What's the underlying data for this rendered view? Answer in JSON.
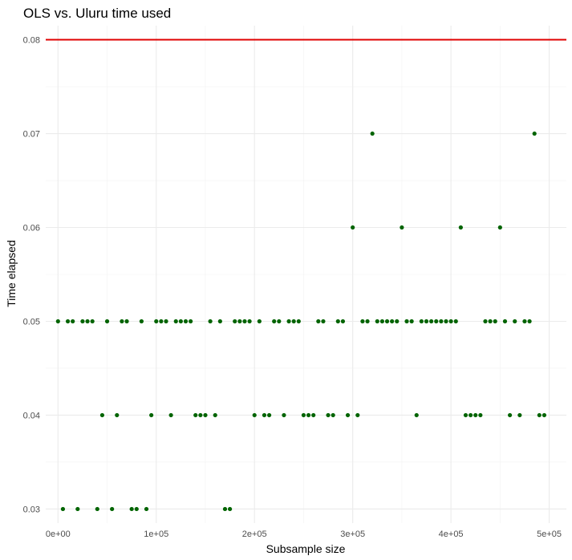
{
  "chart_data": {
    "type": "scatter",
    "title": "OLS vs. Uluru time used",
    "xlabel": "Subsample size",
    "ylabel": "Time elapsed",
    "xlim": [
      -12500,
      517500
    ],
    "ylim": [
      0.0285,
      0.0815
    ],
    "x_ticks": [
      {
        "value": 0,
        "label": "0e+00"
      },
      {
        "value": 100000,
        "label": "1e+05"
      },
      {
        "value": 200000,
        "label": "2e+05"
      },
      {
        "value": 300000,
        "label": "3e+05"
      },
      {
        "value": 400000,
        "label": "4e+05"
      },
      {
        "value": 500000,
        "label": "5e+05"
      }
    ],
    "y_ticks": [
      {
        "value": 0.03,
        "label": "0.03"
      },
      {
        "value": 0.04,
        "label": "0.04"
      },
      {
        "value": 0.05,
        "label": "0.05"
      },
      {
        "value": 0.06,
        "label": "0.06"
      },
      {
        "value": 0.07,
        "label": "0.07"
      },
      {
        "value": 0.08,
        "label": "0.08"
      }
    ],
    "grid": true,
    "point_color": "#006400",
    "hline": {
      "y": 0.08,
      "color": "#e00000"
    },
    "series": [
      {
        "x": [
          0,
          5000,
          10000,
          15000,
          20000,
          25000,
          30000,
          35000,
          40000,
          45000,
          50000,
          55000,
          60000,
          65000,
          70000,
          75000,
          80000,
          85000,
          90000,
          95000,
          100000,
          105000,
          110000,
          115000,
          120000,
          125000,
          130000,
          135000,
          140000,
          145000,
          150000,
          155000,
          160000,
          165000,
          170000,
          175000,
          180000,
          185000,
          190000,
          195000,
          200000,
          205000,
          210000,
          215000,
          220000,
          225000,
          230000,
          235000,
          240000,
          245000,
          250000,
          255000,
          260000,
          265000,
          270000,
          275000,
          280000,
          285000,
          290000,
          295000,
          300000,
          305000,
          310000,
          315000,
          320000,
          325000,
          330000,
          335000,
          340000,
          345000,
          350000,
          355000,
          360000,
          365000,
          370000,
          375000,
          380000,
          385000,
          390000,
          395000,
          400000,
          405000,
          410000,
          415000,
          420000,
          425000,
          430000,
          435000,
          440000,
          445000,
          450000,
          455000,
          460000,
          465000,
          470000,
          475000,
          480000,
          485000,
          490000,
          495000
        ],
        "y": [
          0.05,
          0.03,
          0.05,
          0.05,
          0.03,
          0.05,
          0.05,
          0.05,
          0.03,
          0.04,
          0.05,
          0.03,
          0.04,
          0.05,
          0.05,
          0.03,
          0.03,
          0.05,
          0.03,
          0.04,
          0.05,
          0.05,
          0.05,
          0.04,
          0.05,
          0.05,
          0.05,
          0.05,
          0.04,
          0.04,
          0.04,
          0.05,
          0.04,
          0.05,
          0.03,
          0.03,
          0.05,
          0.05,
          0.05,
          0.05,
          0.04,
          0.05,
          0.04,
          0.04,
          0.05,
          0.05,
          0.04,
          0.05,
          0.05,
          0.05,
          0.04,
          0.04,
          0.04,
          0.05,
          0.05,
          0.04,
          0.04,
          0.05,
          0.05,
          0.04,
          0.06,
          0.04,
          0.05,
          0.05,
          0.07,
          0.05,
          0.05,
          0.05,
          0.05,
          0.05,
          0.06,
          0.05,
          0.05,
          0.04,
          0.05,
          0.05,
          0.05,
          0.05,
          0.05,
          0.05,
          0.05,
          0.05,
          0.06,
          0.04,
          0.04,
          0.04,
          0.04,
          0.05,
          0.05,
          0.05,
          0.06,
          0.05,
          0.04,
          0.05,
          0.04,
          0.05,
          0.05,
          0.07,
          0.04,
          0.04
        ]
      }
    ]
  }
}
